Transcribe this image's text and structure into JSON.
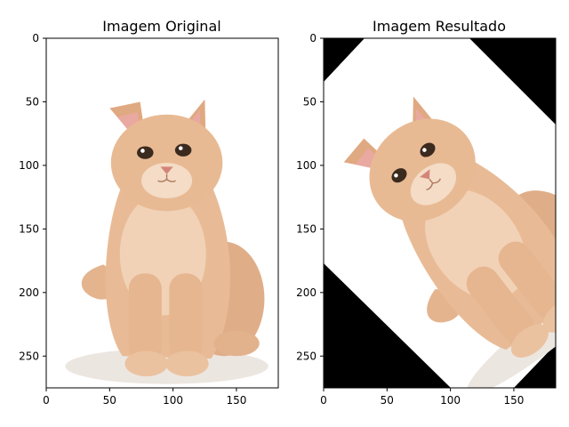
{
  "chart_data": [
    {
      "type": "image",
      "title": "Imagem Original",
      "xlabel": "",
      "ylabel": "",
      "xlim": [
        0,
        183
      ],
      "ylim": [
        275,
        0
      ],
      "xticks": [
        0,
        50,
        100,
        150
      ],
      "yticks": [
        0,
        50,
        100,
        150,
        200,
        250
      ],
      "content": "kitten-photo-upright"
    },
    {
      "type": "image",
      "title": "Imagem Resultado",
      "xlabel": "",
      "ylabel": "",
      "xlim": [
        0,
        183
      ],
      "ylim": [
        275,
        0
      ],
      "xticks": [
        0,
        50,
        100,
        150
      ],
      "yticks": [
        0,
        50,
        100,
        150,
        200,
        250
      ],
      "content": "kitten-photo-rotated",
      "rotation_deg": -45,
      "background_color": "#000000"
    }
  ]
}
